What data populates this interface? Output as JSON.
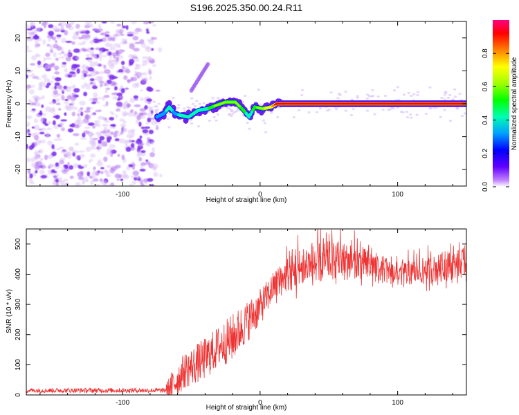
{
  "title": "S196.2025.350.00.24.R11",
  "chart_data": [
    {
      "type": "heatmap",
      "name": "spectrogram",
      "xlabel": "Height of straight line (km)",
      "ylabel": "Frequency (Hz)",
      "xlim": [
        -170,
        150
      ],
      "ylim": [
        -25,
        25
      ],
      "xticks": [
        -100,
        0,
        100
      ],
      "xtick_labels": [
        "-100",
        "0",
        "100"
      ],
      "yticks": [
        -20,
        -10,
        0,
        10,
        20
      ],
      "ytick_labels": [
        "-20",
        "-10",
        "0",
        "10",
        "20"
      ],
      "noise_region": {
        "x_range": [
          -170,
          -78
        ],
        "y_range": [
          -25,
          25
        ],
        "amplitude_range": [
          0.0,
          0.2
        ]
      },
      "signal_track": [
        {
          "x": -75,
          "y": -4,
          "amp": 0.25
        },
        {
          "x": -70,
          "y": -3,
          "amp": 0.3
        },
        {
          "x": -66,
          "y": -1,
          "amp": 0.35
        },
        {
          "x": -62,
          "y": -3,
          "amp": 0.3
        },
        {
          "x": -58,
          "y": -3.5,
          "amp": 0.32
        },
        {
          "x": -52,
          "y": -4,
          "amp": 0.35
        },
        {
          "x": -45,
          "y": -2,
          "amp": 0.4
        },
        {
          "x": -38,
          "y": -1.5,
          "amp": 0.45
        },
        {
          "x": -32,
          "y": -0.5,
          "amp": 0.55
        },
        {
          "x": -25,
          "y": 0.5,
          "amp": 0.6
        },
        {
          "x": -18,
          "y": 0.5,
          "amp": 0.55
        },
        {
          "x": -12,
          "y": -2,
          "amp": 0.5
        },
        {
          "x": -8,
          "y": -4,
          "amp": 0.4
        },
        {
          "x": -4,
          "y": -1,
          "amp": 0.5
        },
        {
          "x": 2,
          "y": -1.5,
          "amp": 0.6
        },
        {
          "x": 8,
          "y": -1,
          "amp": 0.7
        },
        {
          "x": 12,
          "y": 0,
          "amp": 0.9
        },
        {
          "x": 150,
          "y": 0,
          "amp": 0.9
        }
      ],
      "secondary_tracks": [
        {
          "x": [
            -50,
            -38
          ],
          "y": [
            4,
            12
          ],
          "amp": 0.15
        }
      ],
      "colorbar": {
        "label": "Normalized spectral amplitude",
        "range": [
          0,
          1
        ],
        "ticks": [
          0.0,
          0.2,
          0.4,
          0.6,
          0.8
        ],
        "tick_labels": [
          "0.0",
          "0.2",
          "0.4",
          "0.6",
          "0.8"
        ],
        "colors": [
          "#ffffff",
          "#c080ff",
          "#6000ff",
          "#0000ff",
          "#00c0ff",
          "#00ff80",
          "#40ff00",
          "#ffff00",
          "#ff8000",
          "#ff0000",
          "#ff0080"
        ]
      }
    },
    {
      "type": "line",
      "name": "snr",
      "xlabel": "Height of straight line (km)",
      "ylabel": "SNR (10 * v/v)",
      "xlim": [
        -170,
        150
      ],
      "ylim": [
        0,
        550
      ],
      "xticks": [
        -100,
        0,
        100
      ],
      "xtick_labels": [
        "-100",
        "0",
        "100"
      ],
      "yticks": [
        0,
        100,
        200,
        300,
        400,
        500
      ],
      "ytick_labels": [
        "0",
        "100",
        "200",
        "300",
        "400",
        "500"
      ],
      "color": "#ee3333",
      "trend": {
        "x": [
          -170,
          -70,
          -64,
          -55,
          -40,
          -30,
          -20,
          -10,
          0,
          10,
          20,
          30,
          45,
          60,
          80,
          100,
          120,
          150
        ],
        "y": [
          15,
          15,
          30,
          80,
          120,
          160,
          190,
          240,
          290,
          360,
          400,
          420,
          440,
          450,
          430,
          400,
          410,
          440
        ],
        "amplitude": [
          8,
          8,
          50,
          60,
          70,
          70,
          80,
          70,
          60,
          50,
          60,
          70,
          70,
          60,
          50,
          40,
          45,
          50
        ]
      }
    }
  ]
}
